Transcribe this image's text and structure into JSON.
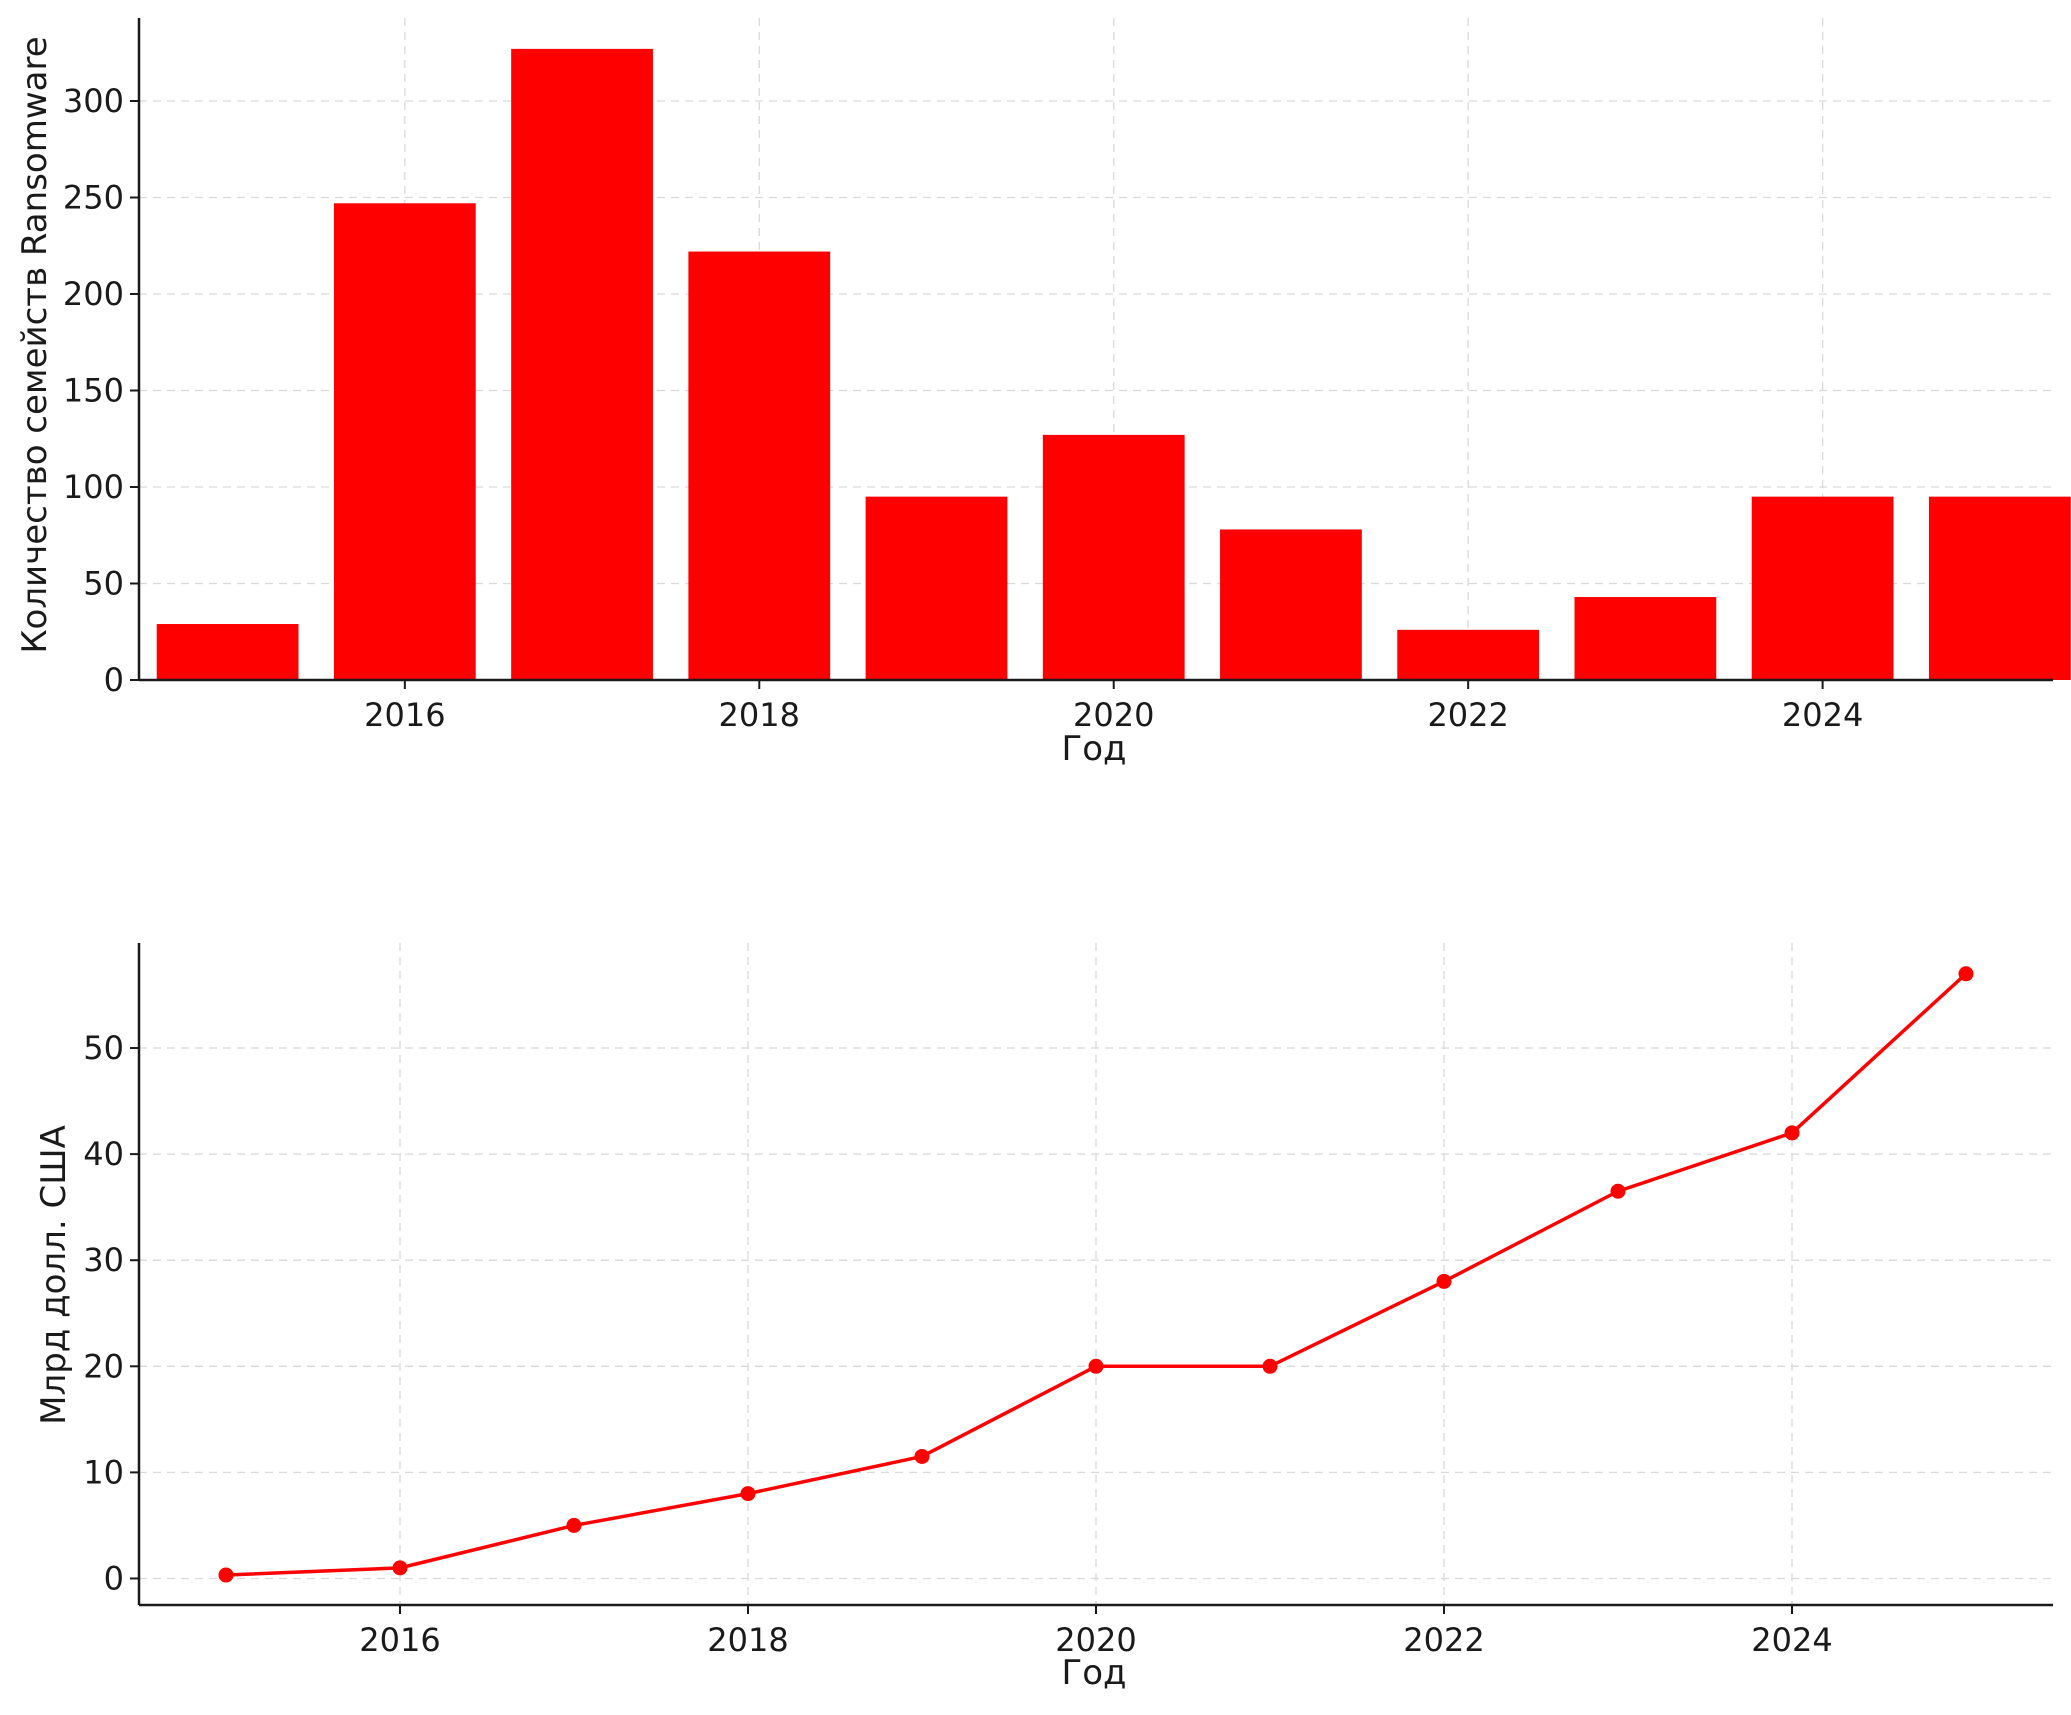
{
  "chart_data": [
    {
      "type": "bar",
      "x": [
        2015,
        2016,
        2017,
        2018,
        2019,
        2020,
        2021,
        2022,
        2023,
        2024,
        2025
      ],
      "values": [
        29,
        247,
        327,
        222,
        95,
        127,
        78,
        26,
        43,
        95,
        95
      ],
      "xlabel": "Год",
      "ylabel": "Количество семейств Ransomware",
      "xticks": [
        2016,
        2018,
        2020,
        2022,
        2024
      ],
      "yticks": [
        0,
        50,
        100,
        150,
        200,
        250,
        300
      ],
      "xlim": [
        2014.5,
        2025.3
      ],
      "ylim": [
        0,
        343
      ],
      "grid": true,
      "color": "#ff0000"
    },
    {
      "type": "line",
      "x": [
        2015,
        2016,
        2017,
        2018,
        2019,
        2020,
        2021,
        2022,
        2023,
        2024,
        2025
      ],
      "values": [
        0.325,
        1,
        5,
        8,
        11.5,
        20,
        20,
        28,
        36.5,
        42,
        57
      ],
      "xlabel": "Год",
      "ylabel": "Млрд долл. США",
      "xticks": [
        2016,
        2018,
        2020,
        2022,
        2024
      ],
      "yticks": [
        0,
        10,
        20,
        30,
        40,
        50
      ],
      "xlim": [
        2014.5,
        2025.5
      ],
      "ylim": [
        -2.5,
        59.9
      ],
      "grid": true,
      "color": "#ff0000"
    }
  ]
}
